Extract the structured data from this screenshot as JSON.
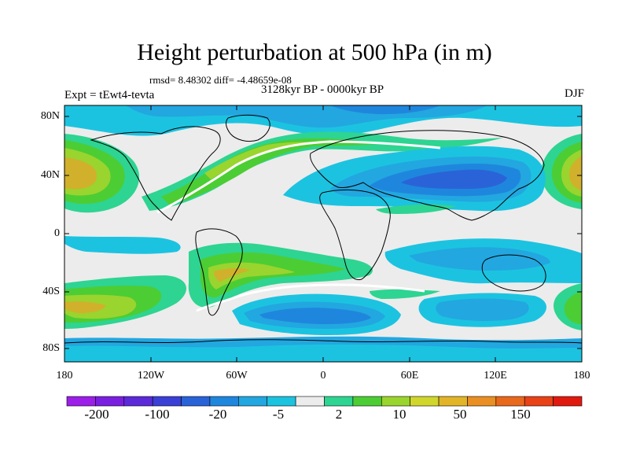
{
  "title": "Height perturbation at 500 hPa (in m)",
  "stats": "rmsd= 8.48302 diff= -4.48659e-08",
  "experiment": "Expt = tEwt4-tevta",
  "period": "3128kyr BP - 0000kyr BP",
  "season": "DJF",
  "lat_ticks": [
    "80N",
    "40N",
    "0",
    "40S",
    "80S"
  ],
  "lon_ticks": [
    "180",
    "120W",
    "60W",
    "0",
    "60E",
    "120E",
    "180"
  ],
  "colorbar": {
    "colors": [
      "#9b1fe8",
      "#7a1fe0",
      "#5c2ad8",
      "#3a3fd6",
      "#2a63d8",
      "#1f86dd",
      "#22a7e0",
      "#1cc3e0",
      "#ececec",
      "#2ed491",
      "#4ccd34",
      "#9ad42e",
      "#d1d62c",
      "#e2b428",
      "#ea8f23",
      "#e8681c",
      "#e84216",
      "#e11a10"
    ],
    "labels": [
      "-200",
      "-100",
      "-20",
      "-5",
      "2",
      "10",
      "50",
      "150"
    ]
  },
  "field_colors": {
    "background": "#ececec",
    "pos_weak": "#2ed491",
    "pos_mid": "#4ccd34",
    "pos_strong": "#9ad42e",
    "pos_max": "#d1b02c",
    "neg_weak": "#1cc3e0",
    "neg_mid": "#22a7e0",
    "neg_strong": "#1f86dd",
    "neg_max": "#2a63d8"
  }
}
